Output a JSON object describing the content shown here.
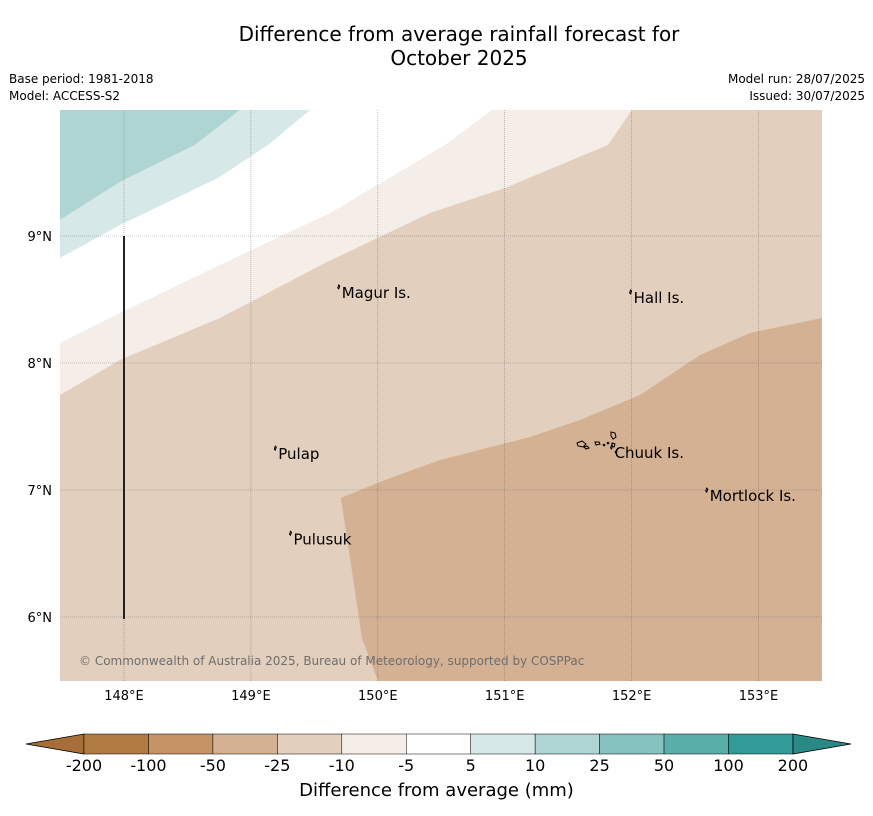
{
  "title": "Difference from average rainfall forecast for\nOctober 2025",
  "meta": {
    "base_period": "Base period: 1981-2018",
    "model": "Model: ACCESS-S2",
    "model_run": "Model run: 28/07/2025",
    "issued": "Issued: 30/07/2025"
  },
  "map": {
    "x_ticks": [
      "148°E",
      "149°E",
      "150°E",
      "151°E",
      "152°E",
      "153°E"
    ],
    "y_ticks": [
      "9°N",
      "8°N",
      "7°N",
      "6°N"
    ],
    "places": [
      {
        "name": "Magur Is.",
        "lon": 149.7,
        "lat": 8.56
      },
      {
        "name": "Hall Is.",
        "lon": 152.0,
        "lat": 8.52
      },
      {
        "name": "Pulap",
        "lon": 149.2,
        "lat": 7.29
      },
      {
        "name": "Chuuk Is.",
        "lon": 151.85,
        "lat": 7.3
      },
      {
        "name": "Mortlock Is.",
        "lon": 152.6,
        "lat": 6.96
      },
      {
        "name": "Pulusuk",
        "lon": 149.32,
        "lat": 6.62
      }
    ],
    "copyright": "© Commonwealth of Australia 2025, Bureau of Meteorology, supported by COSPPac"
  },
  "colorbar": {
    "title": "Difference from average (mm)",
    "ticks": [
      "-200",
      "-100",
      "-50",
      "-25",
      "-10",
      "-5",
      "5",
      "10",
      "25",
      "50",
      "100",
      "200"
    ],
    "colors": [
      "#b07a43",
      "#c49467",
      "#d3b192",
      "#e3cfbd",
      "#f4ede8",
      "#ffffff",
      "#d6e9e8",
      "#aed5d3",
      "#86c2bf",
      "#5aaeaa",
      "#319b97"
    ],
    "extend_low_color": "#a66e39",
    "extend_high_color": "#2a8985"
  },
  "colors": {
    "land_outline": "#000000",
    "grid": "#555555"
  }
}
